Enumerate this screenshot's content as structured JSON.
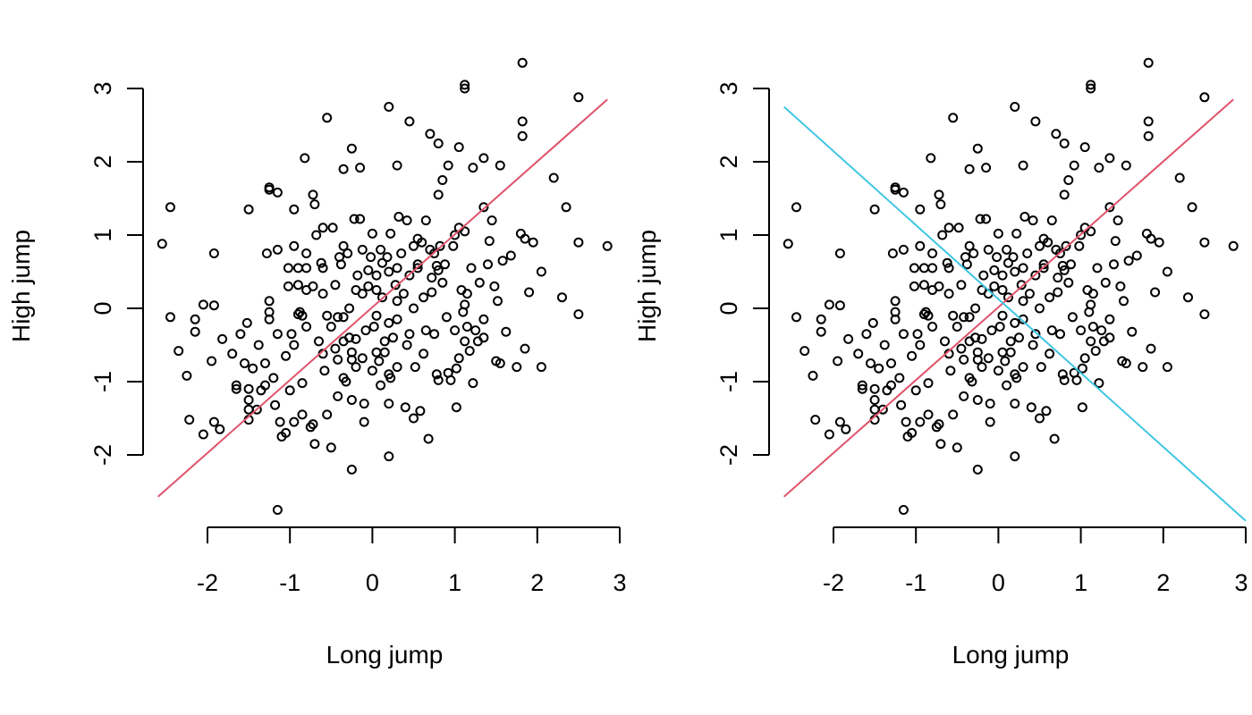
{
  "chart_data": [
    {
      "type": "scatter",
      "xlabel": "Long jump",
      "ylabel": "High jump",
      "xlim": [
        -2.6,
        2.85
      ],
      "ylim": [
        -2.75,
        3.35
      ],
      "x_ticks": [
        "-2",
        "-1",
        "0",
        "1",
        "2",
        "3"
      ],
      "y_ticks": [
        "-2",
        "-1",
        "0",
        "1",
        "2",
        "3"
      ],
      "lines": [
        {
          "color": "#DF536B",
          "from": [
            -2.6,
            -2.57
          ],
          "to": [
            2.85,
            2.85
          ]
        }
      ]
    },
    {
      "type": "scatter",
      "xlabel": "Long jump",
      "ylabel": "High jump",
      "xlim": [
        -2.6,
        2.85
      ],
      "ylim": [
        -2.75,
        3.35
      ],
      "x_ticks": [
        "-2",
        "-1",
        "0",
        "1",
        "2",
        "3"
      ],
      "y_ticks": [
        "-2",
        "-1",
        "0",
        "1",
        "2",
        "3"
      ],
      "lines": [
        {
          "color": "#DF536B",
          "from": [
            -2.6,
            -2.57
          ],
          "to": [
            2.85,
            2.85
          ]
        },
        {
          "color": "#61D04F",
          "from": [
            -2.6,
            2.75
          ],
          "to": [
            3.0,
            -2.9
          ]
        }
      ]
    }
  ],
  "points": [
    [
      -2.55,
      0.88
    ],
    [
      -2.45,
      1.38
    ],
    [
      -2.45,
      -0.12
    ],
    [
      -2.35,
      -0.58
    ],
    [
      -2.25,
      -0.92
    ],
    [
      -2.22,
      -1.52
    ],
    [
      -2.15,
      -0.15
    ],
    [
      -2.15,
      -0.32
    ],
    [
      -2.05,
      -1.72
    ],
    [
      -2.05,
      0.05
    ],
    [
      -1.95,
      -0.72
    ],
    [
      -1.92,
      0.75
    ],
    [
      -1.92,
      -1.55
    ],
    [
      -1.92,
      0.04
    ],
    [
      -1.85,
      -1.65
    ],
    [
      -1.82,
      -0.42
    ],
    [
      -1.7,
      -0.62
    ],
    [
      -1.65,
      -1.05
    ],
    [
      -1.65,
      -1.1
    ],
    [
      -1.6,
      -0.35
    ],
    [
      -1.55,
      -0.75
    ],
    [
      -1.52,
      -0.2
    ],
    [
      -1.5,
      -1.1
    ],
    [
      -1.5,
      -1.25
    ],
    [
      -1.5,
      -1.38
    ],
    [
      -1.5,
      -1.52
    ],
    [
      -1.45,
      -0.82
    ],
    [
      -1.4,
      -1.38
    ],
    [
      -1.38,
      -0.5
    ],
    [
      -1.35,
      -1.12
    ],
    [
      -1.3,
      -0.75
    ],
    [
      -1.3,
      -1.05
    ],
    [
      -1.28,
      0.75
    ],
    [
      -1.25,
      0.1
    ],
    [
      -1.25,
      -0.05
    ],
    [
      -1.25,
      -0.15
    ],
    [
      -1.25,
      1.62
    ],
    [
      -1.2,
      -0.95
    ],
    [
      -1.18,
      -1.32
    ],
    [
      -1.15,
      1.58
    ],
    [
      -1.15,
      -0.35
    ],
    [
      -1.15,
      0.8
    ],
    [
      -1.12,
      -1.55
    ],
    [
      -1.1,
      -1.75
    ],
    [
      -1.05,
      -1.7
    ],
    [
      -1.05,
      -0.65
    ],
    [
      -1.02,
      0.55
    ],
    [
      -1.02,
      0.3
    ],
    [
      -1.0,
      -1.12
    ],
    [
      -0.98,
      -0.35
    ],
    [
      -0.95,
      -0.5
    ],
    [
      -0.95,
      -1.55
    ],
    [
      -0.95,
      0.85
    ],
    [
      -0.95,
      1.35
    ],
    [
      -0.9,
      -0.08
    ],
    [
      -0.9,
      0.55
    ],
    [
      -0.9,
      0.32
    ],
    [
      -0.88,
      -0.05
    ],
    [
      -0.85,
      -0.1
    ],
    [
      -0.85,
      -1.02
    ],
    [
      -0.85,
      -1.45
    ],
    [
      -0.82,
      2.05
    ],
    [
      -0.8,
      0.55
    ],
    [
      -0.8,
      0.75
    ],
    [
      -0.8,
      0.25
    ],
    [
      -0.8,
      -0.25
    ],
    [
      -0.75,
      -1.62
    ],
    [
      -0.72,
      1.55
    ],
    [
      -0.72,
      0.3
    ],
    [
      -0.72,
      -1.58
    ],
    [
      -0.7,
      1.42
    ],
    [
      -0.68,
      1.0
    ],
    [
      -0.65,
      -0.45
    ],
    [
      -0.62,
      0.62
    ],
    [
      -0.6,
      1.1
    ],
    [
      -0.6,
      0.55
    ],
    [
      -0.6,
      0.2
    ],
    [
      -0.6,
      -0.62
    ],
    [
      -0.58,
      -0.85
    ],
    [
      -0.55,
      -0.1
    ],
    [
      -0.55,
      -1.45
    ],
    [
      -0.5,
      -0.25
    ],
    [
      -0.48,
      1.1
    ],
    [
      -0.45,
      0.32
    ],
    [
      -0.45,
      -0.55
    ],
    [
      -0.42,
      -0.12
    ],
    [
      -0.42,
      -0.7
    ],
    [
      -0.42,
      -1.2
    ],
    [
      -0.4,
      0.7
    ],
    [
      -0.38,
      0.6
    ],
    [
      -0.35,
      0.85
    ],
    [
      -0.35,
      -0.12
    ],
    [
      -0.35,
      -0.45
    ],
    [
      -0.35,
      -0.95
    ],
    [
      -0.32,
      -1.0
    ],
    [
      -0.3,
      0.75
    ],
    [
      -0.28,
      0.0
    ],
    [
      -0.28,
      -0.4
    ],
    [
      -0.25,
      -0.6
    ],
    [
      -0.25,
      -0.7
    ],
    [
      -0.25,
      -1.25
    ],
    [
      -0.22,
      1.22
    ],
    [
      -0.2,
      0.25
    ],
    [
      -0.2,
      -0.8
    ],
    [
      -0.2,
      -0.42
    ],
    [
      -0.18,
      0.45
    ],
    [
      -0.15,
      1.22
    ],
    [
      -0.12,
      0.8
    ],
    [
      -0.12,
      0.2
    ],
    [
      -0.12,
      -0.68
    ],
    [
      -0.1,
      -1.3
    ],
    [
      -0.1,
      -1.55
    ],
    [
      -0.08,
      -0.3
    ],
    [
      -0.05,
      0.3
    ],
    [
      -0.05,
      0.52
    ],
    [
      -0.02,
      0.7
    ],
    [
      -0.0,
      1.02
    ],
    [
      0.0,
      -0.85
    ],
    [
      0.02,
      -0.25
    ],
    [
      0.05,
      0.25
    ],
    [
      0.05,
      0.45
    ],
    [
      0.05,
      -0.1
    ],
    [
      0.05,
      -0.6
    ],
    [
      0.08,
      -0.72
    ],
    [
      0.1,
      0.8
    ],
    [
      0.1,
      -1.05
    ],
    [
      0.12,
      0.62
    ],
    [
      0.12,
      0.15
    ],
    [
      0.15,
      -0.45
    ],
    [
      0.15,
      -0.6
    ],
    [
      0.18,
      0.7
    ],
    [
      0.2,
      0.5
    ],
    [
      0.2,
      -0.2
    ],
    [
      0.2,
      -0.9
    ],
    [
      0.2,
      -1.3
    ],
    [
      0.22,
      1.02
    ],
    [
      0.22,
      -0.95
    ],
    [
      0.25,
      -0.4
    ],
    [
      0.28,
      0.32
    ],
    [
      0.3,
      0.55
    ],
    [
      0.3,
      0.1
    ],
    [
      0.3,
      -0.15
    ],
    [
      0.3,
      -0.8
    ],
    [
      0.32,
      1.25
    ],
    [
      0.35,
      0.75
    ],
    [
      0.38,
      0.2
    ],
    [
      0.4,
      -1.35
    ],
    [
      0.42,
      1.2
    ],
    [
      0.42,
      -0.5
    ],
    [
      0.45,
      0.45
    ],
    [
      0.45,
      -0.35
    ],
    [
      0.5,
      0.85
    ],
    [
      0.5,
      0.0
    ],
    [
      0.5,
      -1.5
    ],
    [
      0.52,
      -0.8
    ],
    [
      0.55,
      0.6
    ],
    [
      0.55,
      0.95
    ],
    [
      0.55,
      0.55
    ],
    [
      0.58,
      -1.4
    ],
    [
      0.6,
      0.9
    ],
    [
      0.62,
      0.15
    ],
    [
      0.62,
      -0.62
    ],
    [
      0.65,
      -0.3
    ],
    [
      0.68,
      -1.78
    ],
    [
      0.7,
      0.8
    ],
    [
      0.72,
      0.42
    ],
    [
      0.72,
      0.22
    ],
    [
      0.75,
      0.75
    ],
    [
      0.75,
      -0.35
    ],
    [
      0.78,
      -0.9
    ],
    [
      0.78,
      0.58
    ],
    [
      0.8,
      0.52
    ],
    [
      0.8,
      -0.98
    ],
    [
      0.82,
      0.85
    ],
    [
      0.85,
      0.35
    ],
    [
      0.88,
      0.6
    ],
    [
      0.9,
      -0.12
    ],
    [
      0.92,
      -0.88
    ],
    [
      0.95,
      -0.98
    ],
    [
      0.98,
      0.85
    ],
    [
      1.0,
      -0.3
    ],
    [
      1.02,
      -0.82
    ],
    [
      1.02,
      -1.35
    ],
    [
      1.05,
      -0.68
    ],
    [
      1.05,
      1.1
    ],
    [
      1.08,
      0.25
    ],
    [
      1.1,
      -0.05
    ],
    [
      1.12,
      0.05
    ],
    [
      1.12,
      1.05
    ],
    [
      1.12,
      -0.45
    ],
    [
      1.15,
      0.2
    ],
    [
      1.15,
      -0.25
    ],
    [
      1.18,
      -0.58
    ],
    [
      1.2,
      0.55
    ],
    [
      1.22,
      -1.02
    ],
    [
      1.25,
      -0.3
    ],
    [
      1.28,
      -0.45
    ],
    [
      1.3,
      0.35
    ],
    [
      1.35,
      -0.15
    ],
    [
      1.35,
      -0.4
    ],
    [
      1.4,
      0.6
    ],
    [
      1.42,
      0.92
    ],
    [
      1.45,
      1.2
    ],
    [
      1.48,
      0.3
    ],
    [
      1.5,
      -0.72
    ],
    [
      1.52,
      0.1
    ],
    [
      1.55,
      -0.75
    ],
    [
      1.58,
      0.65
    ],
    [
      1.62,
      -0.32
    ],
    [
      1.68,
      0.72
    ],
    [
      1.75,
      -0.8
    ],
    [
      1.8,
      1.02
    ],
    [
      1.85,
      0.95
    ],
    [
      1.85,
      -0.55
    ],
    [
      1.9,
      0.22
    ],
    [
      1.95,
      0.9
    ],
    [
      2.05,
      -0.8
    ],
    [
      2.05,
      0.5
    ],
    [
      2.2,
      1.78
    ],
    [
      2.3,
      0.15
    ],
    [
      2.35,
      1.38
    ],
    [
      2.5,
      -0.08
    ],
    [
      2.5,
      0.9
    ],
    [
      2.85,
      0.85
    ],
    [
      -0.55,
      2.6
    ],
    [
      -0.25,
      2.18
    ],
    [
      -0.15,
      1.92
    ],
    [
      0.2,
      2.75
    ],
    [
      0.3,
      1.95
    ],
    [
      0.45,
      2.55
    ],
    [
      0.7,
      2.38
    ],
    [
      0.8,
      2.25
    ],
    [
      0.85,
      1.75
    ],
    [
      0.92,
      1.95
    ],
    [
      1.05,
      2.2
    ],
    [
      1.22,
      1.92
    ],
    [
      1.35,
      2.05
    ],
    [
      1.55,
      1.95
    ],
    [
      1.82,
      2.55
    ],
    [
      1.82,
      2.35
    ],
    [
      1.82,
      3.35
    ],
    [
      1.12,
      3.0
    ],
    [
      1.12,
      3.05
    ],
    [
      2.5,
      2.88
    ],
    [
      -0.35,
      1.9
    ],
    [
      -1.25,
      1.65
    ],
    [
      -1.5,
      1.35
    ],
    [
      -0.25,
      -2.2
    ],
    [
      0.2,
      -2.02
    ],
    [
      -1.15,
      -2.75
    ],
    [
      0.8,
      1.55
    ],
    [
      0.65,
      1.2
    ],
    [
      1.0,
      1.0
    ],
    [
      1.35,
      1.38
    ],
    [
      -0.7,
      -1.85
    ],
    [
      -0.5,
      -1.9
    ]
  ]
}
